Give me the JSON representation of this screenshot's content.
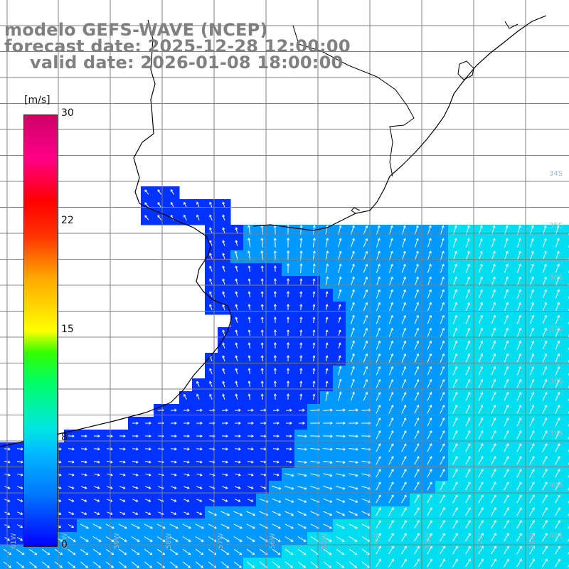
{
  "title": {
    "line1": "modelo GEFS-WAVE (NCEP)",
    "line2": "forecast date: 2025-12-28 12:00:00",
    "line3": "valid date: 2026-01-08 18:00:00"
  },
  "colorbar": {
    "units": "[m/s]",
    "ticks": [
      "30",
      "22",
      "15",
      "8",
      "0"
    ],
    "colors": [
      "#0000ff",
      "#0077ff",
      "#00bbff",
      "#00e5e5",
      "#00ff66",
      "#ffff00",
      "#ff0000",
      "#cc0066"
    ]
  },
  "map": {
    "lat_labels": [
      "34S",
      "35S",
      "36S",
      "37S",
      "38S",
      "39S",
      "40S",
      "41S"
    ],
    "lon_labels": [
      "61W",
      "60W",
      "59W",
      "58W",
      "57W",
      "56W",
      "55W",
      "54W",
      "53W",
      "52W",
      "51W"
    ],
    "colors": {
      "land": "#ffffff",
      "coast": "#000000",
      "grid": "#808080",
      "field_low": "#0033ff",
      "field_mid": "#0099ff",
      "field_high": "#00ddee",
      "arrows": "#ffffff"
    }
  }
}
